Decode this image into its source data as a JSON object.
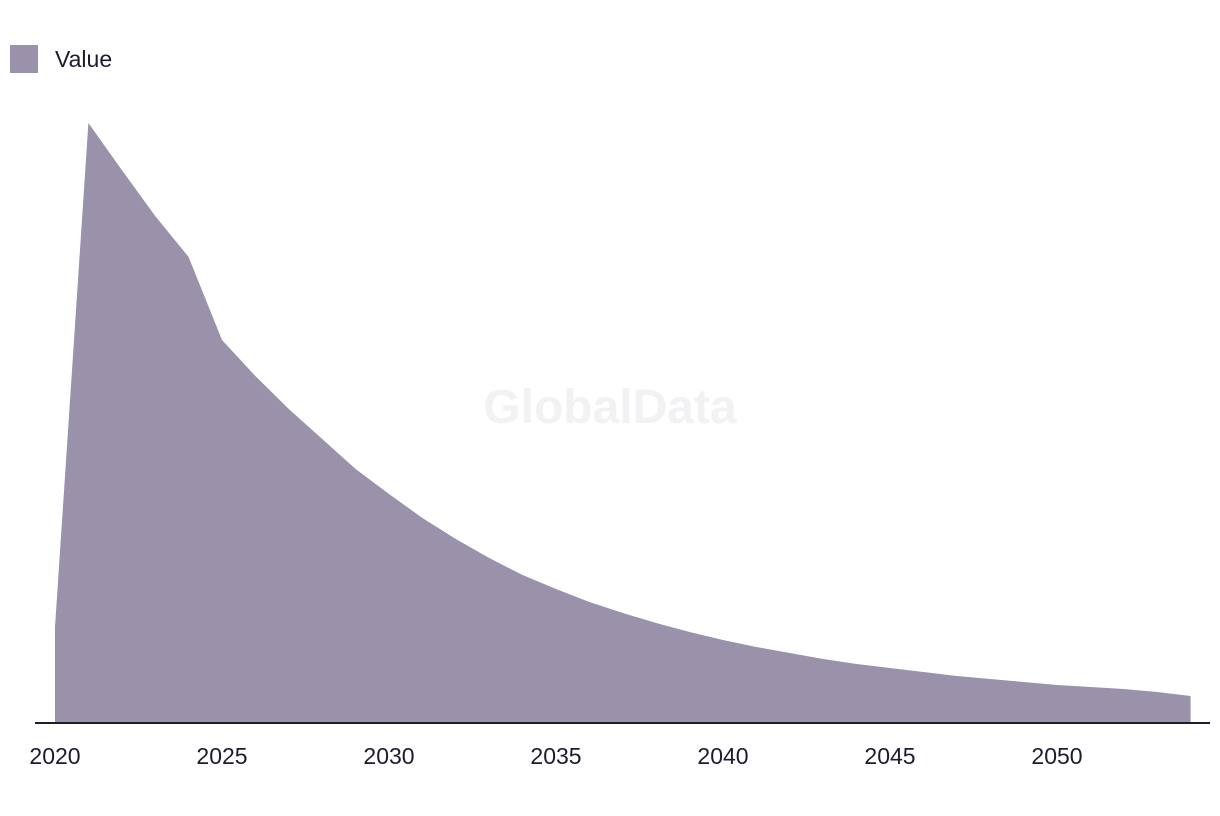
{
  "chart_data": {
    "type": "area",
    "title": "",
    "xlabel": "",
    "ylabel": "",
    "x": [
      2020,
      2021,
      2022,
      2023,
      2024,
      2025,
      2026,
      2027,
      2028,
      2029,
      2030,
      2031,
      2032,
      2033,
      2034,
      2035,
      2036,
      2037,
      2038,
      2039,
      2040,
      2041,
      2042,
      2043,
      2044,
      2045,
      2046,
      2047,
      2048,
      2049,
      2050,
      2051,
      2052,
      2053,
      2054
    ],
    "series": [
      {
        "name": "Value",
        "color": "#9a91aa",
        "values": [
          96,
          600,
          553,
          507,
          466,
          383,
          347,
          314,
          284,
          254,
          229,
          205,
          184,
          165,
          148,
          134,
          121,
          110,
          100,
          91,
          83,
          76,
          70,
          64,
          59,
          55,
          51,
          47,
          44,
          41,
          38,
          36,
          34,
          31,
          27
        ]
      }
    ],
    "ylim": [
      0,
      640
    ],
    "xlim": [
      2019.8,
      2055
    ],
    "x_ticks": [
      "2020",
      "2025",
      "2030",
      "2035",
      "2040",
      "2045",
      "2050"
    ],
    "grid": false,
    "legend_position": "top-left",
    "watermark": "GlobalData",
    "axis_color": "#1d1b2e"
  }
}
